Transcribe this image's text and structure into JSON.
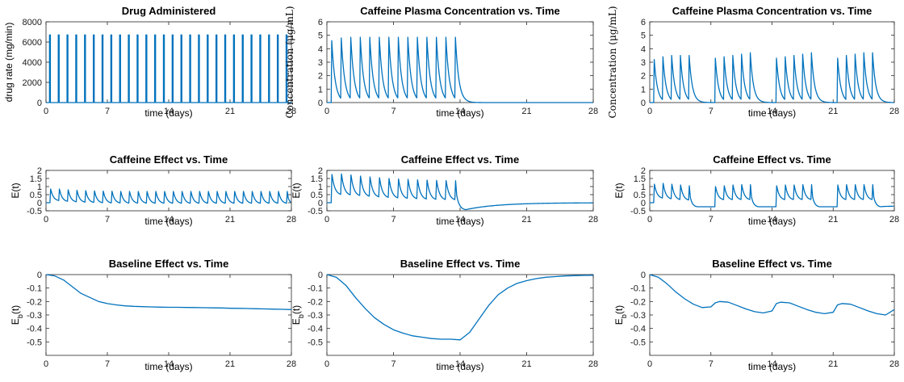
{
  "colors": {
    "series": "#0072BD",
    "axis": "#262626"
  },
  "chart_data": [
    {
      "id": "p11",
      "type": "line",
      "title": "Drug Administered",
      "xlabel": "time (days)",
      "ylabel": "drug rate (mg/min)",
      "xlim": [
        0,
        28
      ],
      "ylim": [
        0,
        8000
      ],
      "xticks": [
        0,
        7,
        14,
        21,
        28
      ],
      "yticks": [
        0,
        2000,
        4000,
        6000,
        8000
      ],
      "series": [
        {
          "kind": "pulses",
          "times": [
            0.45,
            1.45,
            2.45,
            3.45,
            4.45,
            5.45,
            6.45,
            7.45,
            8.45,
            9.45,
            10.45,
            11.45,
            12.45,
            13.45,
            14.45,
            15.45,
            16.45,
            17.45,
            18.45,
            19.45,
            20.45,
            21.45,
            22.45,
            23.45,
            24.45,
            25.45,
            26.45,
            27.45
          ],
          "value": 6700
        }
      ]
    },
    {
      "id": "p12",
      "type": "line",
      "title": "Caffeine Plasma Concentration vs. Time",
      "xlabel": "time (days)",
      "ylabel": "Concentration (μg/mL)",
      "xlim": [
        0,
        28
      ],
      "ylim": [
        0,
        6
      ],
      "xticks": [
        0,
        7,
        14,
        21,
        28
      ],
      "yticks": [
        0,
        1,
        2,
        3,
        4,
        5,
        6
      ],
      "series": [
        {
          "kind": "doses",
          "dose_times": [
            0.45,
            1.45,
            2.45,
            3.45,
            4.45,
            5.45,
            6.45,
            7.45,
            8.45,
            9.45,
            10.45,
            11.45,
            12.45,
            13.45
          ],
          "peaks": [
            4.6,
            4.8,
            4.85,
            4.85,
            4.85,
            4.85,
            4.85,
            4.85,
            4.85,
            4.85,
            4.85,
            4.85,
            4.85,
            4.85
          ],
          "decay_rate": 2.8,
          "end_day": 28
        }
      ]
    },
    {
      "id": "p13",
      "type": "line",
      "title": "Caffeine Plasma Concentration vs. Time",
      "xlabel": "time (days)",
      "ylabel": "Concentration (μg/mL)",
      "xlim": [
        0,
        28
      ],
      "ylim": [
        0,
        6
      ],
      "xticks": [
        0,
        7,
        14,
        21,
        28
      ],
      "yticks": [
        0,
        1,
        2,
        3,
        4,
        5,
        6
      ],
      "series": [
        {
          "kind": "doses",
          "dose_times": [
            0.45,
            1.45,
            2.45,
            3.45,
            4.45,
            7.45,
            8.45,
            9.45,
            10.45,
            11.45,
            14.45,
            15.45,
            16.45,
            17.45,
            18.45,
            21.45,
            22.45,
            23.45,
            24.45,
            25.45
          ],
          "peaks": [
            3.2,
            3.4,
            3.5,
            3.5,
            3.5,
            3.3,
            3.4,
            3.5,
            3.6,
            3.7,
            3.3,
            3.4,
            3.5,
            3.6,
            3.7,
            3.3,
            3.5,
            3.6,
            3.7,
            3.7
          ],
          "decay_rate": 2.8,
          "end_day": 28
        }
      ]
    },
    {
      "id": "p21",
      "type": "line",
      "title": "Caffeine Effect vs. Time",
      "xlabel": "time (days)",
      "ylabel": "E(t)",
      "xlim": [
        0,
        28
      ],
      "ylim": [
        -0.5,
        2
      ],
      "xticks": [
        0,
        7,
        14,
        21,
        28
      ],
      "yticks": [
        -0.5,
        0,
        0.5,
        1,
        1.5,
        2
      ],
      "series": [
        {
          "kind": "effect_doses",
          "dose_times": [
            0.45,
            1.45,
            2.45,
            3.45,
            4.45,
            5.45,
            6.45,
            7.45,
            8.45,
            9.45,
            10.45,
            11.45,
            12.45,
            13.45,
            14.45,
            15.45,
            16.45,
            17.45,
            18.45,
            19.45,
            20.45,
            21.45,
            22.45,
            23.45,
            24.45,
            25.45,
            26.45,
            27.45
          ],
          "peaks": [
            0.85,
            0.85,
            0.8,
            0.77,
            0.75,
            0.73,
            0.72,
            0.71,
            0.7,
            0.7,
            0.7,
            0.7,
            0.7,
            0.7,
            0.7,
            0.7,
            0.7,
            0.7,
            0.7,
            0.7,
            0.7,
            0.7,
            0.7,
            0.7,
            0.7,
            0.7,
            0.7,
            0.7
          ],
          "troughs": [
            0.1,
            0.05,
            0.02,
            0.0,
            -0.02,
            -0.04,
            -0.05,
            -0.05,
            -0.06,
            -0.06,
            -0.06,
            -0.07,
            -0.07,
            -0.07,
            -0.07,
            -0.07,
            -0.07,
            -0.07,
            -0.07,
            -0.07,
            -0.07,
            -0.07,
            -0.07,
            -0.07,
            -0.07,
            -0.07,
            -0.07,
            -0.07
          ],
          "after_min": -0.07,
          "end_value": -0.07
        }
      ]
    },
    {
      "id": "p22",
      "type": "line",
      "title": "Caffeine Effect vs. Time",
      "xlabel": "time (days)",
      "ylabel": "E(t)",
      "xlim": [
        0,
        28
      ],
      "ylim": [
        -0.5,
        2
      ],
      "xticks": [
        0,
        7,
        14,
        21,
        28
      ],
      "yticks": [
        -0.5,
        0,
        0.5,
        1,
        1.5,
        2
      ],
      "series": [
        {
          "kind": "effect_doses",
          "dose_times": [
            0.45,
            1.45,
            2.45,
            3.45,
            4.45,
            5.45,
            6.45,
            7.45,
            8.45,
            9.45,
            10.45,
            11.45,
            12.45,
            13.45
          ],
          "peaks": [
            1.75,
            1.78,
            1.72,
            1.65,
            1.6,
            1.55,
            1.5,
            1.47,
            1.45,
            1.42,
            1.4,
            1.38,
            1.37,
            1.36
          ],
          "troughs": [
            0.45,
            0.42,
            0.38,
            0.34,
            0.3,
            0.27,
            0.24,
            0.21,
            0.19,
            0.17,
            0.15,
            0.14,
            0.13,
            0.12
          ],
          "after_min": -0.43,
          "after_min_day": 14.6,
          "end_value": -0.01
        }
      ]
    },
    {
      "id": "p23",
      "type": "line",
      "title": "Caffeine Effect vs. Time",
      "xlabel": "time (days)",
      "ylabel": "E(t)",
      "xlim": [
        0,
        28
      ],
      "ylim": [
        -0.5,
        2
      ],
      "xticks": [
        0,
        7,
        14,
        21,
        28
      ],
      "yticks": [
        -0.5,
        0,
        0.5,
        1,
        1.5,
        2
      ],
      "series": [
        {
          "kind": "effect_doses",
          "dose_times": [
            0.45,
            1.45,
            2.45,
            3.45,
            4.45,
            7.45,
            8.45,
            9.45,
            10.45,
            11.45,
            14.45,
            15.45,
            16.45,
            17.45,
            18.45,
            21.45,
            22.45,
            23.45,
            24.45,
            25.45
          ],
          "peaks": [
            1.15,
            1.2,
            1.15,
            1.1,
            1.05,
            1.0,
            1.05,
            1.1,
            1.12,
            1.12,
            1.05,
            1.1,
            1.1,
            1.12,
            1.12,
            1.1,
            1.12,
            1.12,
            1.12,
            1.12
          ],
          "troughs": [
            0.25,
            0.2,
            0.15,
            0.12,
            -0.2,
            0.15,
            0.15,
            0.15,
            0.15,
            -0.25,
            0.15,
            0.15,
            0.15,
            0.15,
            -0.25,
            0.15,
            0.15,
            0.15,
            0.15,
            -0.25
          ],
          "gap_floor": -0.25,
          "end_value": -0.22
        }
      ]
    },
    {
      "id": "p31",
      "type": "line",
      "title": "Baseline Effect vs. Time",
      "xlabel": "time (days)",
      "ylabel": "E_b(t)",
      "xlim": [
        0,
        28
      ],
      "ylim": [
        -0.6,
        0
      ],
      "xticks": [
        0,
        7,
        14,
        21,
        28
      ],
      "yticks": [
        -0.5,
        -0.4,
        -0.3,
        -0.2,
        -0.1,
        0
      ],
      "series": [
        {
          "kind": "points",
          "x": [
            0,
            1,
            2,
            3,
            4,
            5,
            6,
            7,
            8,
            9,
            10,
            11,
            12,
            13,
            14,
            15,
            16,
            17,
            18,
            19,
            20,
            21,
            22,
            23,
            24,
            25,
            26,
            27,
            28
          ],
          "y": [
            0,
            -0.01,
            -0.04,
            -0.09,
            -0.14,
            -0.17,
            -0.2,
            -0.215,
            -0.225,
            -0.232,
            -0.236,
            -0.238,
            -0.24,
            -0.242,
            -0.243,
            -0.243,
            -0.244,
            -0.245,
            -0.246,
            -0.247,
            -0.248,
            -0.25,
            -0.251,
            -0.252,
            -0.254,
            -0.255,
            -0.257,
            -0.258,
            -0.26
          ]
        }
      ]
    },
    {
      "id": "p32",
      "type": "line",
      "title": "Baseline Effect vs. Time",
      "xlabel": "time (days)",
      "ylabel": "E_b(t)",
      "xlim": [
        0,
        28
      ],
      "ylim": [
        -0.6,
        0
      ],
      "xticks": [
        0,
        7,
        14,
        21,
        28
      ],
      "yticks": [
        -0.5,
        -0.4,
        -0.3,
        -0.2,
        -0.1,
        0
      ],
      "series": [
        {
          "kind": "points",
          "x": [
            0,
            1,
            2,
            3,
            4,
            5,
            6,
            7,
            8,
            9,
            10,
            11,
            12,
            13,
            14,
            15,
            16,
            17,
            18,
            19,
            20,
            21,
            22,
            23,
            24,
            25,
            26,
            27,
            28
          ],
          "y": [
            0,
            -0.02,
            -0.08,
            -0.17,
            -0.25,
            -0.32,
            -0.37,
            -0.41,
            -0.435,
            -0.455,
            -0.465,
            -0.475,
            -0.48,
            -0.48,
            -0.485,
            -0.43,
            -0.33,
            -0.23,
            -0.15,
            -0.1,
            -0.065,
            -0.045,
            -0.03,
            -0.02,
            -0.015,
            -0.01,
            -0.008,
            -0.006,
            -0.005
          ]
        }
      ]
    },
    {
      "id": "p33",
      "type": "line",
      "title": "Baseline Effect vs. Time",
      "xlabel": "time (days)",
      "ylabel": "E_b(t)",
      "xlim": [
        0,
        28
      ],
      "ylim": [
        -0.6,
        0
      ],
      "xticks": [
        0,
        7,
        14,
        21,
        28
      ],
      "yticks": [
        -0.5,
        -0.4,
        -0.3,
        -0.2,
        -0.1,
        0
      ],
      "series": [
        {
          "kind": "points",
          "x": [
            0,
            1,
            2,
            3,
            4,
            5,
            6,
            7,
            7.5,
            8,
            9,
            10,
            11,
            12,
            13,
            14,
            14.5,
            15,
            16,
            17,
            18,
            19,
            20,
            21,
            21.5,
            22,
            23,
            24,
            25,
            26,
            27,
            28
          ],
          "y": [
            0,
            -0.02,
            -0.07,
            -0.13,
            -0.18,
            -0.22,
            -0.245,
            -0.24,
            -0.21,
            -0.2,
            -0.205,
            -0.23,
            -0.255,
            -0.275,
            -0.285,
            -0.27,
            -0.215,
            -0.205,
            -0.21,
            -0.235,
            -0.26,
            -0.28,
            -0.29,
            -0.28,
            -0.225,
            -0.215,
            -0.22,
            -0.245,
            -0.27,
            -0.29,
            -0.3,
            -0.26
          ]
        }
      ]
    }
  ]
}
